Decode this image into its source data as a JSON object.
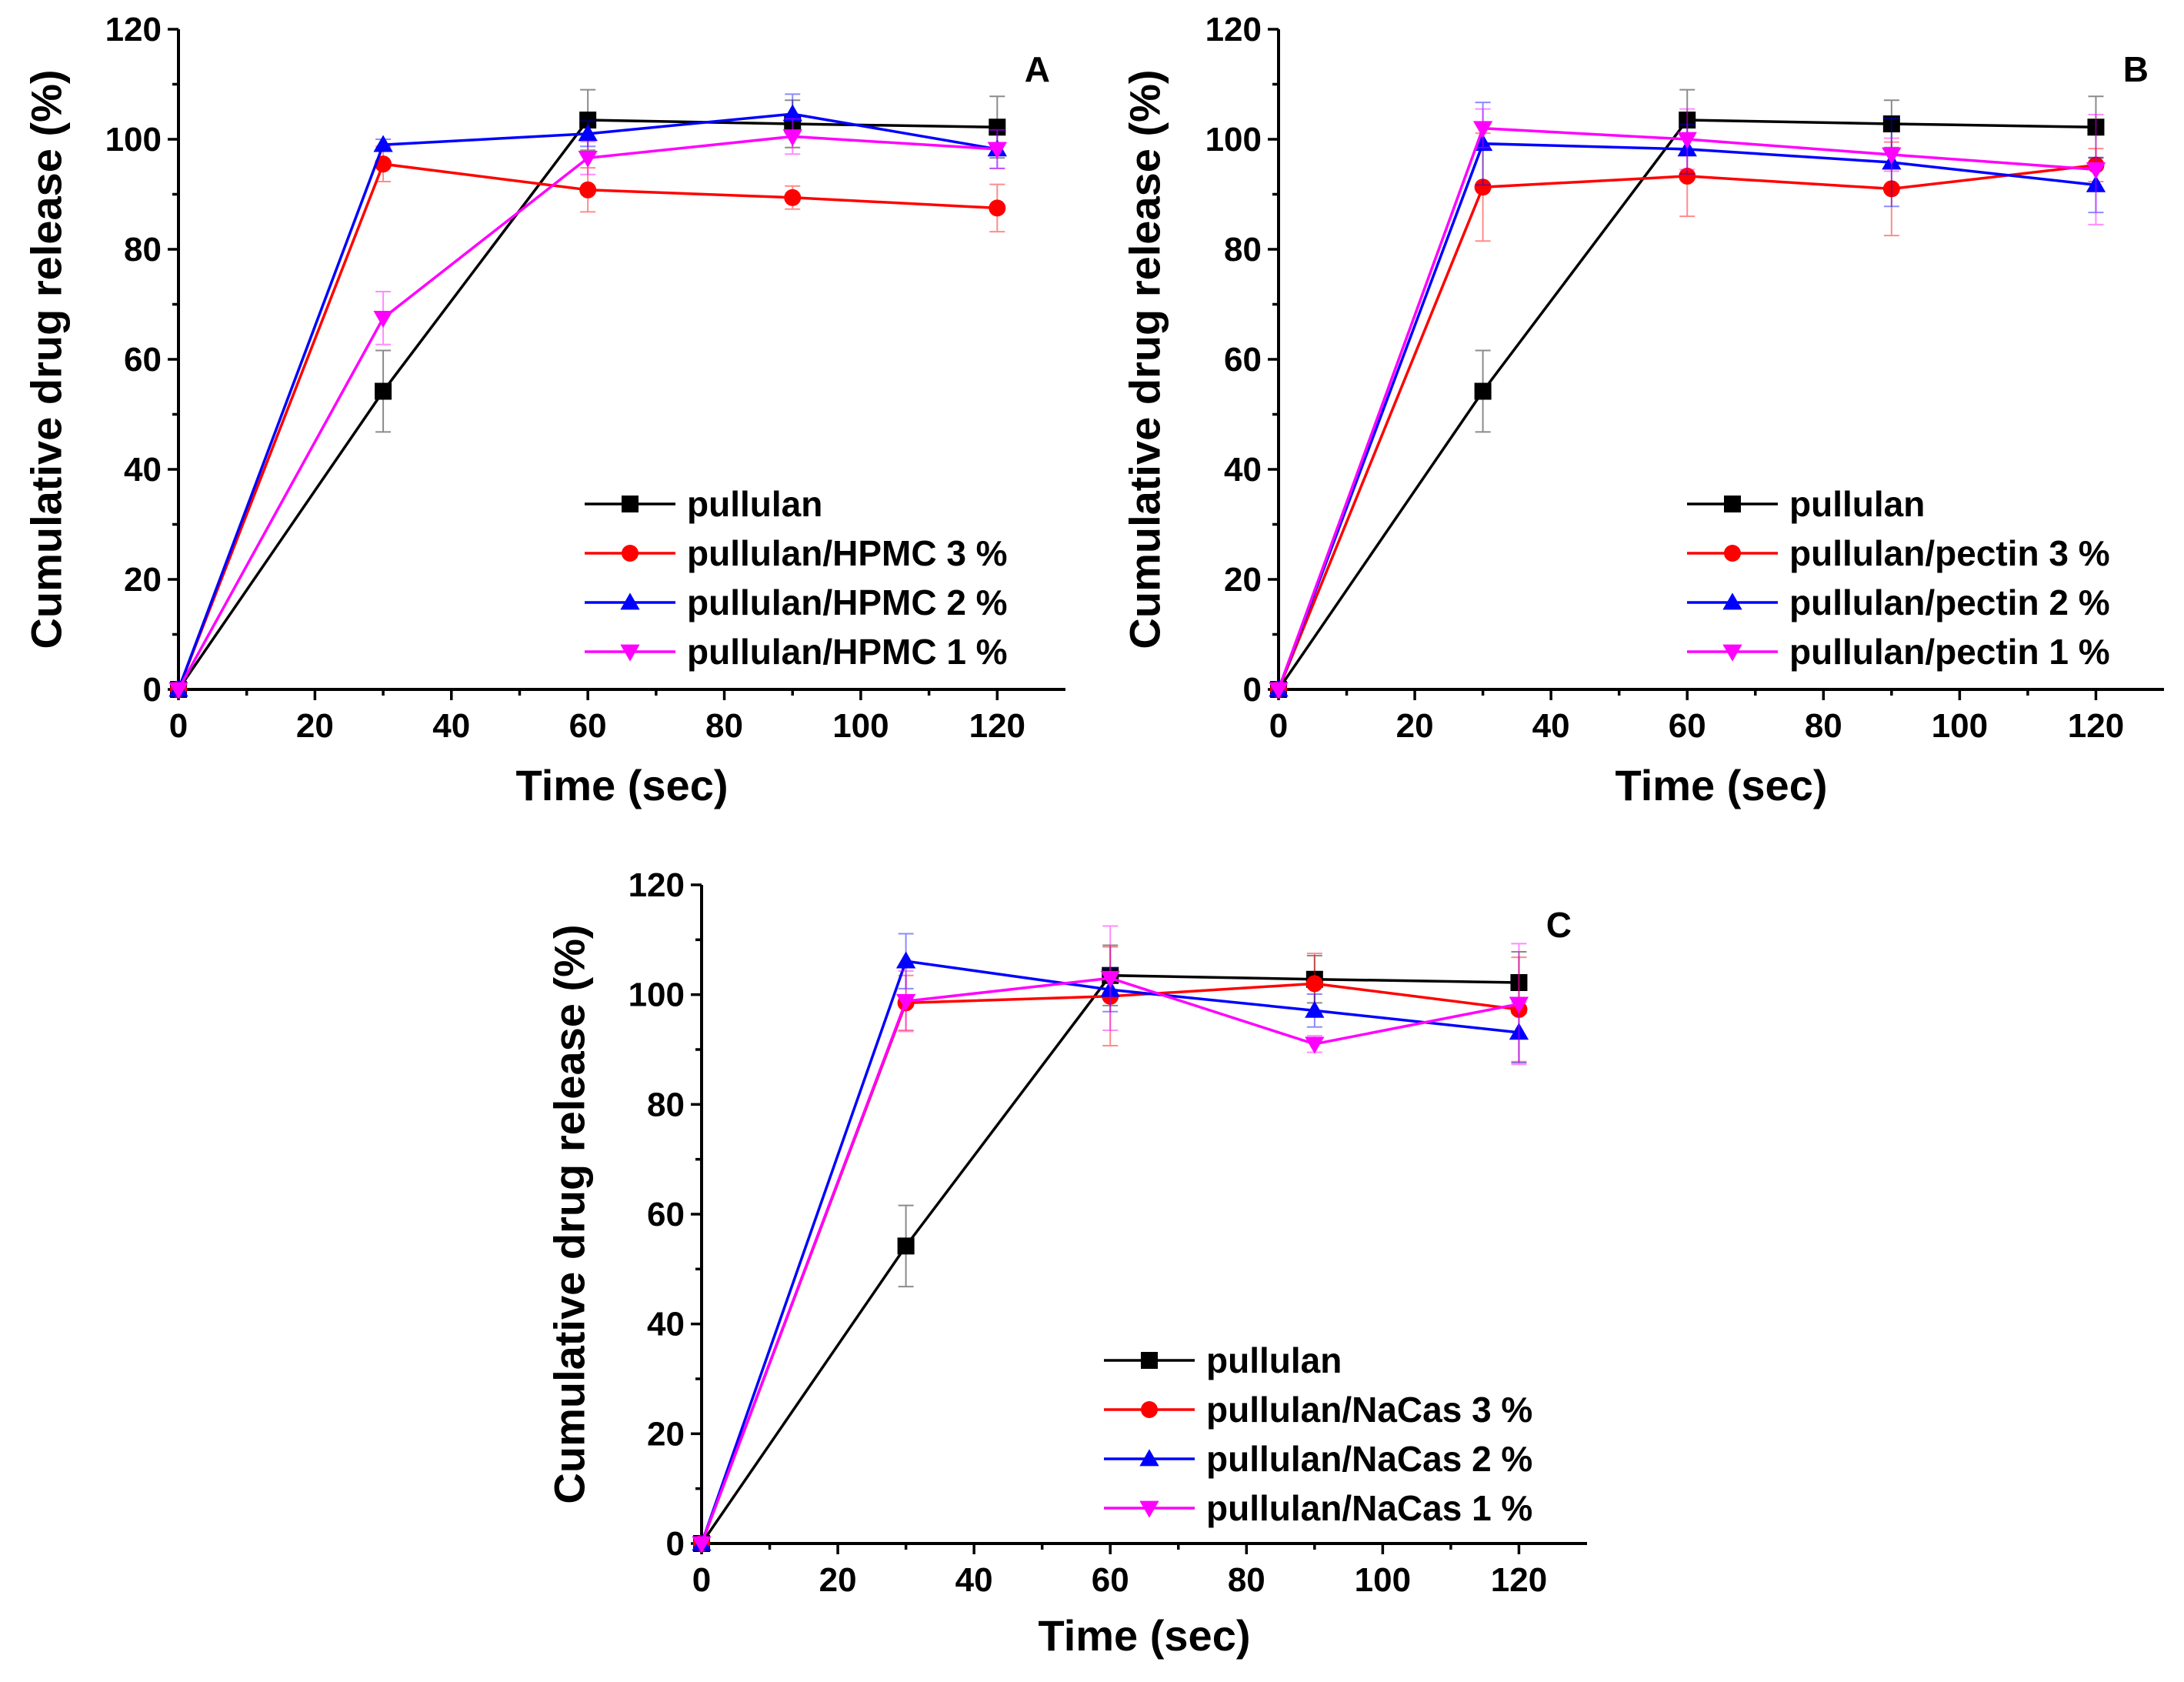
{
  "colors": {
    "pullulan": "#000000",
    "three_percent": "#ff0000",
    "two_percent": "#0000ff",
    "one_percent": "#ff00ff"
  },
  "chart_data": [
    {
      "type": "line",
      "panel_label": "A",
      "xlabel": "Time (sec)",
      "ylabel": "Cumulative drug release (%)",
      "xlim": [
        0,
        130
      ],
      "ylim": [
        0,
        120
      ],
      "xticks": [
        0,
        20,
        40,
        60,
        80,
        100,
        120
      ],
      "yticks": [
        0,
        20,
        40,
        60,
        80,
        100,
        120
      ],
      "legend_position": "bottom-right",
      "x": [
        0,
        30,
        60,
        90,
        120
      ],
      "series": [
        {
          "name": "pullulan",
          "marker": "square",
          "color": "#000000",
          "values": [
            0,
            54.2,
            103.5,
            102.8,
            102.2
          ],
          "errors": [
            0,
            7.4,
            5.5,
            4.3,
            5.6
          ]
        },
        {
          "name": "pullulan/HPMC 3 %",
          "marker": "circle",
          "color": "#ff0000",
          "values": [
            0,
            95.5,
            90.8,
            89.4,
            87.5
          ],
          "errors": [
            0,
            3.2,
            4.0,
            2.1,
            4.3
          ]
        },
        {
          "name": "pullulan/HPMC 2 %",
          "marker": "triangle-up",
          "color": "#0000ff",
          "values": [
            0,
            99.0,
            101.0,
            104.6,
            98.2
          ],
          "errors": [
            0,
            1.0,
            2.3,
            3.6,
            3.5
          ]
        },
        {
          "name": "pullulan/HPMC 1 %",
          "marker": "triangle-down",
          "color": "#ff00ff",
          "values": [
            0,
            67.5,
            96.6,
            100.5,
            98.2
          ],
          "errors": [
            0,
            4.8,
            3.0,
            3.2,
            3.5
          ]
        }
      ]
    },
    {
      "type": "line",
      "panel_label": "B",
      "xlabel": "Time (sec)",
      "ylabel": "Cumulative drug release (%)",
      "xlim": [
        0,
        130
      ],
      "ylim": [
        0,
        120
      ],
      "xticks": [
        0,
        20,
        40,
        60,
        80,
        100,
        120
      ],
      "yticks": [
        0,
        20,
        40,
        60,
        80,
        100,
        120
      ],
      "legend_position": "bottom-right",
      "x": [
        0,
        30,
        60,
        90,
        120
      ],
      "series": [
        {
          "name": "pullulan",
          "marker": "square",
          "color": "#000000",
          "values": [
            0,
            54.2,
            103.5,
            102.8,
            102.2
          ],
          "errors": [
            0,
            7.4,
            5.5,
            4.3,
            5.6
          ]
        },
        {
          "name": "pullulan/pectin 3 %",
          "marker": "circle",
          "color": "#ff0000",
          "values": [
            0,
            91.3,
            93.3,
            91.0,
            95.3
          ],
          "errors": [
            0,
            9.8,
            7.3,
            8.5,
            3.0
          ]
        },
        {
          "name": "pullulan/pectin 2 %",
          "marker": "triangle-up",
          "color": "#0000ff",
          "values": [
            0,
            99.2,
            98.2,
            95.8,
            91.7
          ],
          "errors": [
            0,
            7.5,
            4.5,
            8.0,
            5.0
          ]
        },
        {
          "name": "pullulan/pectin 1 %",
          "marker": "triangle-down",
          "color": "#ff00ff",
          "values": [
            0,
            102.0,
            100.0,
            97.2,
            94.5
          ],
          "errors": [
            0,
            3.5,
            5.5,
            3.0,
            10.0
          ]
        }
      ]
    },
    {
      "type": "line",
      "panel_label": "C",
      "xlabel": "Time (sec)",
      "ylabel": "Cumulative drug release (%)",
      "xlim": [
        0,
        130
      ],
      "ylim": [
        0,
        120
      ],
      "xticks": [
        0,
        20,
        40,
        60,
        80,
        100,
        120
      ],
      "yticks": [
        0,
        20,
        40,
        60,
        80,
        100,
        120
      ],
      "legend_position": "bottom-right",
      "x": [
        0,
        30,
        60,
        90,
        120
      ],
      "series": [
        {
          "name": "pullulan",
          "marker": "square",
          "color": "#000000",
          "values": [
            0,
            54.2,
            103.5,
            102.8,
            102.2
          ],
          "errors": [
            0,
            7.4,
            5.5,
            4.3,
            5.6
          ]
        },
        {
          "name": "pullulan/NaCas 3 %",
          "marker": "circle",
          "color": "#ff0000",
          "values": [
            0,
            98.5,
            99.7,
            102.0,
            97.3
          ],
          "errors": [
            0,
            5.0,
            9.0,
            5.5,
            9.5
          ]
        },
        {
          "name": "pullulan/NaCas 2 %",
          "marker": "triangle-up",
          "color": "#0000ff",
          "values": [
            0,
            106.1,
            100.9,
            97.1,
            93.1
          ],
          "errors": [
            0,
            5.0,
            4.0,
            3.0,
            5.5
          ]
        },
        {
          "name": "pullulan/NaCas 1 %",
          "marker": "triangle-down",
          "color": "#ff00ff",
          "values": [
            0,
            98.8,
            103.0,
            91.0,
            98.3
          ],
          "errors": [
            0,
            5.5,
            9.5,
            1.5,
            11.0
          ]
        }
      ]
    }
  ]
}
